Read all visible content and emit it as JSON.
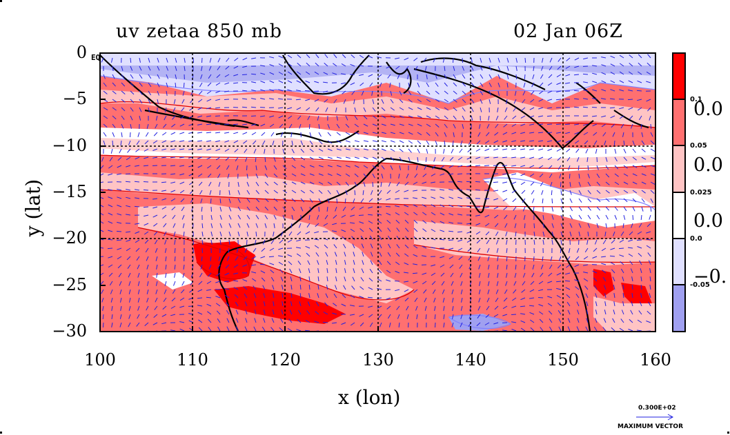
{
  "title_left": "uv zetaa 850 mb",
  "title_right": "02 Jan 06Z",
  "x_axis": {
    "label": "x (lon)",
    "ticks": [
      "100",
      "110",
      "120",
      "130",
      "140",
      "150",
      "160"
    ],
    "range": [
      100,
      160
    ]
  },
  "y_axis": {
    "label": "y (lat)",
    "ticks": [
      "0",
      "−5",
      "−10",
      "−15",
      "−20",
      "−25",
      "−30"
    ],
    "range": [
      -30,
      0
    ]
  },
  "equator_label": "EQ",
  "colorbar": {
    "levels": [
      {
        "label": "0.1",
        "color": "#ff0000"
      },
      {
        "label": "0.05",
        "color": "#ff7070"
      },
      {
        "label": "0.025",
        "color": "#ffc4c4"
      },
      {
        "label": "0.0",
        "color": "#ffffff"
      },
      {
        "label": "-0.05",
        "color": "#e0e0ff"
      },
      {
        "label": "",
        "color": "#a0a0f0"
      }
    ],
    "truncated_labels": [
      "0.0",
      "0.0",
      "0.0",
      "−0."
    ]
  },
  "max_vector": {
    "value": "0.300E+02",
    "label": "MAXIMUM VECTOR"
  },
  "colors": {
    "strong_red": "#ff0000",
    "mid_red": "#ff7070",
    "light_red": "#ffc4c4",
    "light_blue": "#e0e0ff",
    "mid_blue": "#a0a0f0",
    "contour_red": "#dd0000",
    "contour_blue": "#8080ff",
    "vector": "#2020e0",
    "coast": "#000000"
  }
}
